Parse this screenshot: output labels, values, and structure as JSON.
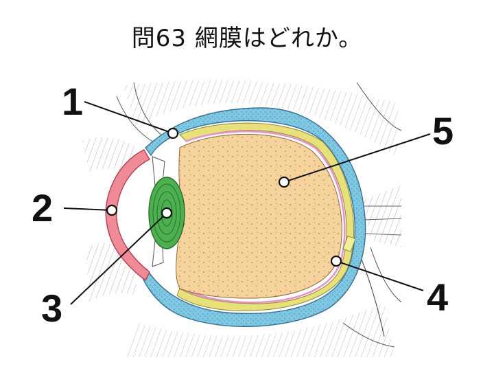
{
  "question": {
    "title": "問63 網膜はどれか。"
  },
  "diagram": {
    "labels": [
      {
        "id": "1",
        "text": "1"
      },
      {
        "id": "2",
        "text": "2"
      },
      {
        "id": "3",
        "text": "3"
      },
      {
        "id": "4",
        "text": "4"
      },
      {
        "id": "5",
        "text": "5"
      }
    ],
    "colors": {
      "sclera": "#7ec8e3",
      "retina": "#e98fc9",
      "choroid": "#e8e07a",
      "vitreous": "#f6d39d",
      "lens": "#4caf50",
      "cornea": "#f08a96",
      "optic-disc": "#f2ef9a"
    }
  }
}
